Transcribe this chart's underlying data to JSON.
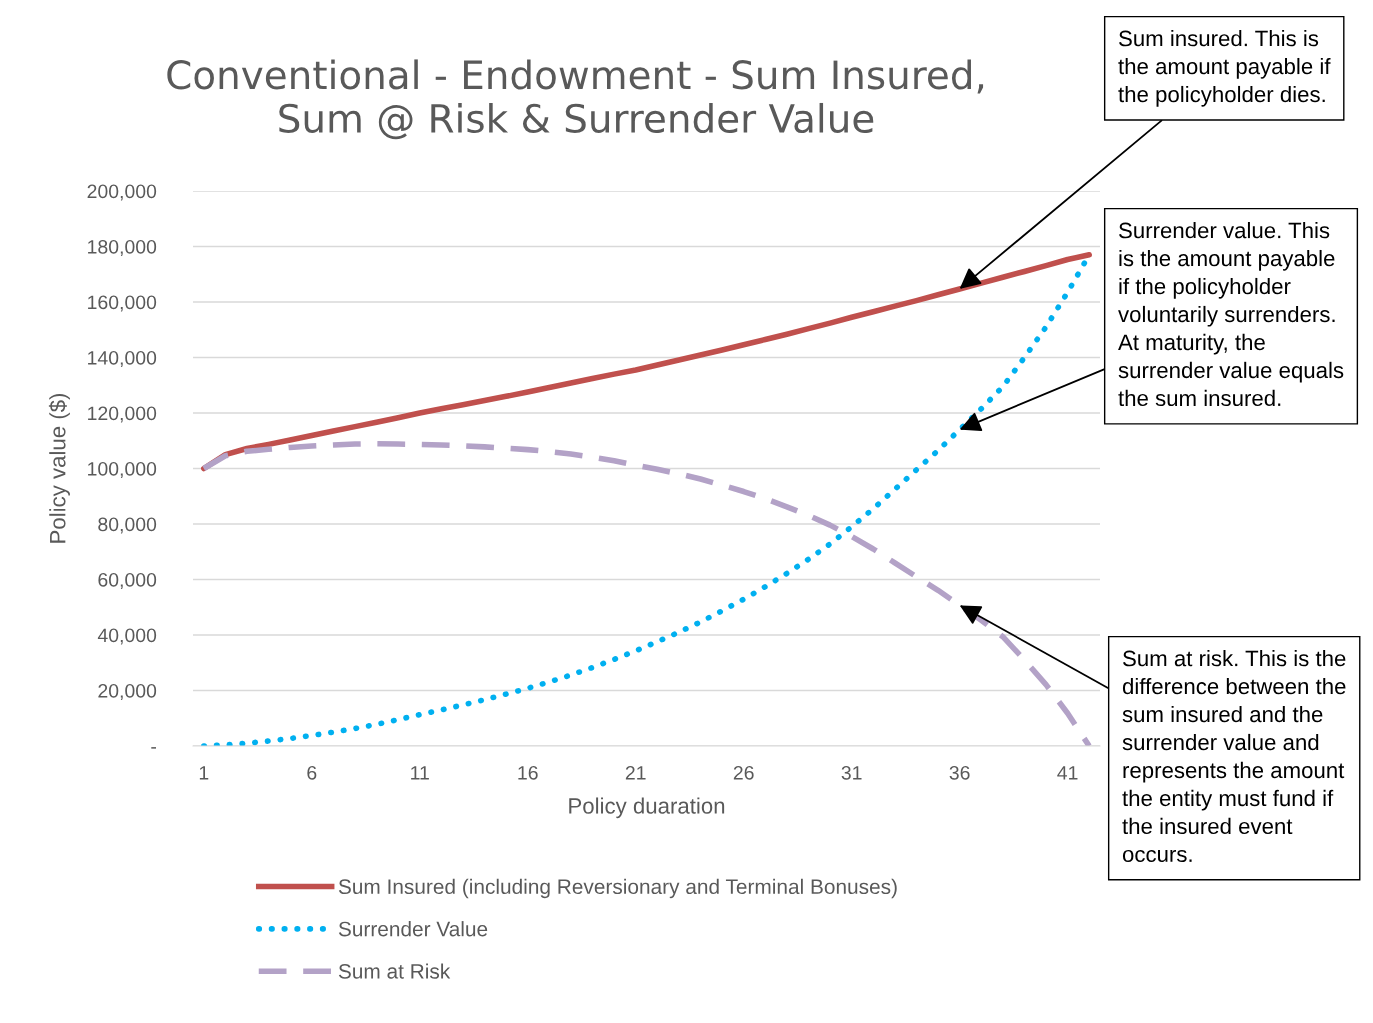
{
  "chart_data": {
    "type": "line",
    "title": "Conventional - Endowment - Sum Insured, Sum @ Risk & Surrender Value",
    "xlabel": "Policy duaration",
    "ylabel": "Policy value ($)",
    "categories": [
      "1",
      null,
      null,
      null,
      null,
      "6",
      null,
      null,
      null,
      null,
      "11",
      null,
      null,
      null,
      null,
      "16",
      null,
      null,
      null,
      null,
      "21",
      null,
      null,
      null,
      null,
      "26",
      null,
      null,
      null,
      null,
      "31",
      null,
      null,
      null,
      null,
      "36",
      null,
      null,
      null,
      null,
      "41",
      null
    ],
    "series": [
      {
        "name": "Sum Insured (including Reversionary and Terminal Bonuses)",
        "color": "#c0504d",
        "line_style": "solid",
        "values": [
          100000,
          105000,
          107200,
          108700,
          110300,
          111900,
          113500,
          115100,
          116700,
          118300,
          120000,
          121500,
          123000,
          124500,
          126000,
          127600,
          129200,
          130800,
          132400,
          134000,
          135500,
          137300,
          139100,
          140900,
          142700,
          144600,
          146500,
          148400,
          150400,
          152400,
          154500,
          156500,
          158500,
          160500,
          162600,
          164700,
          166800,
          168900,
          171000,
          173100,
          175300,
          177000
        ]
      },
      {
        "name": "Surrender Value",
        "color": "#00b0f0",
        "line_style": "dotted",
        "values": [
          0,
          400,
          1000,
          1800,
          2700,
          3800,
          5000,
          6300,
          7800,
          9500,
          11300,
          13000,
          14800,
          16700,
          18700,
          20800,
          23100,
          25600,
          28300,
          31200,
          34300,
          37600,
          41000,
          44700,
          48700,
          52900,
          57400,
          62200,
          67300,
          72800,
          79000,
          85500,
          92500,
          99500,
          106500,
          114000,
          121500,
          129500,
          140000,
          151000,
          163500,
          177000
        ]
      },
      {
        "name": "Sum at Risk",
        "color": "#b3a2c7",
        "line_style": "dashed",
        "values": [
          100000,
          104600,
          106200,
          106900,
          107600,
          108100,
          108500,
          108800,
          108900,
          108800,
          108700,
          108500,
          108200,
          107800,
          107300,
          106800,
          106100,
          105200,
          104100,
          102800,
          101200,
          99700,
          98100,
          96200,
          94000,
          91700,
          89100,
          86200,
          83100,
          79600,
          75500,
          71000,
          66000,
          61000,
          56100,
          50700,
          45300,
          39400,
          31000,
          22100,
          11800,
          0
        ]
      }
    ],
    "ylim": [
      0,
      200000
    ],
    "yticks": [
      {
        "value": 0,
        "label": "-"
      },
      {
        "value": 20000,
        "label": "20,000"
      },
      {
        "value": 40000,
        "label": "40,000"
      },
      {
        "value": 60000,
        "label": "60,000"
      },
      {
        "value": 80000,
        "label": "80,000"
      },
      {
        "value": 100000,
        "label": "100,000"
      },
      {
        "value": 120000,
        "label": "120,000"
      },
      {
        "value": 140000,
        "label": "140,000"
      },
      {
        "value": 160000,
        "label": "160,000"
      },
      {
        "value": 180000,
        "label": "180,000"
      },
      {
        "value": 200000,
        "label": "200,000"
      }
    ],
    "grid": "y",
    "legend": "bottom",
    "marker": "none",
    "annotations": [
      {
        "text": "Sum insured. This is the amount payable if the policyholder dies.",
        "x": "36",
        "y": 164700
      },
      {
        "text": "Surrender value. This is the amount payable if the policyholder voluntarily surrenders. At maturity, the surrender value equals the sum insured.",
        "x": "36",
        "y": 114000
      },
      {
        "text": "Sum at risk. This is the difference between the sum insured and the surrender value and represents the amount the entity must fund if the insured event occurs.",
        "x": "36",
        "y": 50700
      }
    ]
  }
}
